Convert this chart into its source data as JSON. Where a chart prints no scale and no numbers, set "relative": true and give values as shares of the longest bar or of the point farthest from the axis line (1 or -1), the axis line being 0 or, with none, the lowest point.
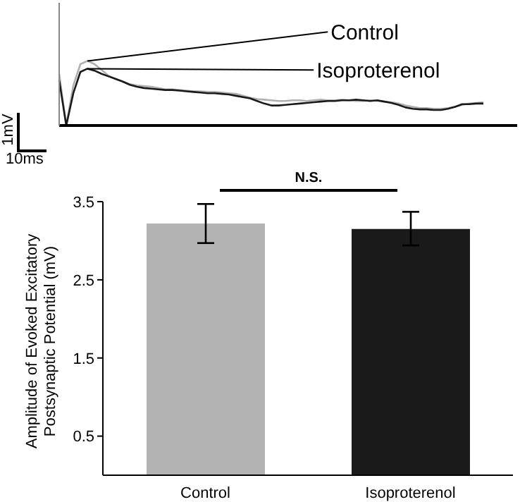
{
  "chart_data": [
    {
      "type": "line",
      "relative": true,
      "categories": [
        null,
        null,
        null,
        null,
        null,
        null,
        null,
        null,
        null,
        null,
        null,
        null,
        null,
        null,
        null,
        null,
        null,
        null,
        null,
        null,
        null,
        null,
        null,
        null,
        null,
        null,
        null,
        null,
        null,
        null,
        null,
        null,
        null,
        null,
        null,
        null,
        null,
        null,
        null,
        null,
        null,
        null,
        null,
        null,
        null,
        null,
        null,
        null,
        null,
        null,
        null,
        null,
        null,
        null,
        null,
        null,
        null,
        null,
        null,
        null,
        null
      ],
      "legend": false,
      "grid": false,
      "annotations": [
        "1mV",
        "10ms"
      ],
      "series": [
        {
          "name": "Control",
          "color": "#b0b0b0",
          "values": [
            0.8,
            0,
            0.62,
            0.95,
            1,
            0.95,
            0.86,
            0.77,
            0.72,
            0.68,
            0.64,
            0.62,
            0.61,
            0.6,
            0.58,
            0.56,
            0.56,
            0.55,
            0.54,
            0.53,
            0.53,
            0.52,
            0.52,
            0.51,
            0.5,
            0.49,
            0.46,
            0.43,
            0.41,
            0.4,
            0.39,
            0.38,
            0.38,
            0.39,
            0.39,
            0.38,
            0.39,
            0.4,
            0.39,
            0.39,
            0.4,
            0.39,
            0.38,
            0.38,
            0.39,
            0.38,
            0.37,
            0.36,
            0.34,
            0.31,
            0.29,
            0.27,
            0.27,
            0.26,
            0.26,
            0.27,
            0.29,
            0.32,
            0.34,
            0.35,
            0.36
          ]
        },
        {
          "name": "Isoproterenol",
          "color": "#1a1a1a",
          "values": [
            0.7,
            0,
            0.5,
            0.83,
            0.88,
            0.85,
            0.8,
            0.76,
            0.72,
            0.68,
            0.63,
            0.6,
            0.58,
            0.57,
            0.56,
            0.55,
            0.55,
            0.54,
            0.53,
            0.52,
            0.51,
            0.5,
            0.5,
            0.49,
            0.48,
            0.46,
            0.44,
            0.42,
            0.38,
            0.34,
            0.31,
            0.31,
            0.32,
            0.33,
            0.34,
            0.35,
            0.36,
            0.37,
            0.38,
            0.38,
            0.39,
            0.39,
            0.4,
            0.39,
            0.38,
            0.39,
            0.37,
            0.35,
            0.32,
            0.28,
            0.26,
            0.25,
            0.25,
            0.24,
            0.24,
            0.26,
            0.29,
            0.33,
            0.33,
            0.34,
            0.34
          ]
        }
      ]
    },
    {
      "type": "bar",
      "categories": [
        "Control",
        "Isoproterenol"
      ],
      "values": [
        3.22,
        3.15
      ],
      "colors": [
        "#b3b3b3",
        "#1a1a1a"
      ],
      "errors": [
        0.25,
        [
          2.94,
          3.37
        ]
      ],
      "ylim": [
        0,
        3.5
      ],
      "yticks": [
        0.5,
        1.5,
        2.5,
        3.5
      ],
      "ylabel": "Amplitude of Evoked Excitatory\nPostsynaptic Potential (mV)",
      "annotations": [
        "N.S."
      ],
      "legend": false,
      "grid": false
    }
  ]
}
